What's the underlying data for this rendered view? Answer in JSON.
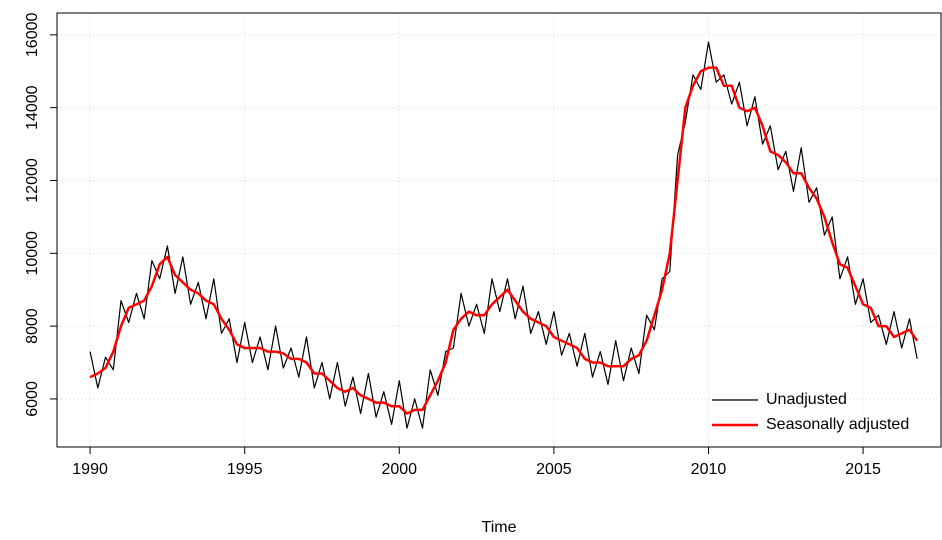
{
  "chart_data": {
    "type": "line",
    "xlabel": "Time",
    "xlim": [
      1988.93,
      2017.52
    ],
    "ylim": [
      4680,
      16600
    ],
    "xticks": [
      1990,
      1995,
      2000,
      2005,
      2010,
      2015
    ],
    "yticks": [
      6000,
      8000,
      10000,
      12000,
      14000,
      16000
    ],
    "grid": true,
    "legend": "bottom-right",
    "x": [
      1990,
      1990.25,
      1990.5,
      1990.75,
      1991,
      1991.25,
      1991.5,
      1991.75,
      1992,
      1992.25,
      1992.5,
      1992.75,
      1993,
      1993.25,
      1993.5,
      1993.75,
      1994,
      1994.25,
      1994.5,
      1994.75,
      1995,
      1995.25,
      1995.5,
      1995.75,
      1996,
      1996.25,
      1996.5,
      1996.75,
      1997,
      1997.25,
      1997.5,
      1997.75,
      1998,
      1998.25,
      1998.5,
      1998.75,
      1999,
      1999.25,
      1999.5,
      1999.75,
      2000,
      2000.25,
      2000.5,
      2000.75,
      2001,
      2001.25,
      2001.5,
      2001.75,
      2002,
      2002.25,
      2002.5,
      2002.75,
      2003,
      2003.25,
      2003.5,
      2003.75,
      2004,
      2004.25,
      2004.5,
      2004.75,
      2005,
      2005.25,
      2005.5,
      2005.75,
      2006,
      2006.25,
      2006.5,
      2006.75,
      2007,
      2007.25,
      2007.5,
      2007.75,
      2008,
      2008.25,
      2008.5,
      2008.75,
      2009,
      2009.25,
      2009.5,
      2009.75,
      2010,
      2010.25,
      2010.5,
      2010.75,
      2011,
      2011.25,
      2011.5,
      2011.75,
      2012,
      2012.25,
      2012.5,
      2012.75,
      2013,
      2013.25,
      2013.5,
      2013.75,
      2014,
      2014.25,
      2014.5,
      2014.75,
      2015,
      2015.25,
      2015.5,
      2015.75,
      2016,
      2016.25,
      2016.5,
      2016.75
    ],
    "series": [
      {
        "name": "Unadjusted",
        "color": "#000000",
        "width": 1.2,
        "values": [
          7300,
          6300,
          7150,
          6800,
          8700,
          8100,
          8900,
          8200,
          9800,
          9300,
          10200,
          8900,
          9900,
          8600,
          9200,
          8200,
          9300,
          7800,
          8200,
          7000,
          8100,
          7000,
          7700,
          6800,
          8000,
          6850,
          7400,
          6600,
          7700,
          6300,
          7000,
          6000,
          7000,
          5800,
          6600,
          5600,
          6700,
          5500,
          6200,
          5300,
          6500,
          5200,
          6000,
          5200,
          6800,
          6100,
          7300,
          7400,
          8900,
          8000,
          8600,
          7800,
          9300,
          8400,
          9300,
          8200,
          9100,
          7800,
          8400,
          7500,
          8400,
          7200,
          7800,
          6900,
          7800,
          6600,
          7300,
          6400,
          7600,
          6500,
          7400,
          6700,
          8300,
          7900,
          9300,
          9500,
          12700,
          13600,
          14900,
          14500,
          15800,
          14700,
          14900,
          14100,
          14700,
          13500,
          14300,
          13000,
          13500,
          12300,
          12800,
          11700,
          12900,
          11400,
          11800,
          10500,
          11000,
          9300,
          9900,
          8600,
          9300,
          8100,
          8300,
          7500,
          8400,
          7400,
          8200,
          7100
        ]
      },
      {
        "name": "Seasonally adjusted",
        "color": "#ff0000",
        "width": 2.5,
        "values": [
          6600,
          6700,
          6850,
          7300,
          8000,
          8500,
          8600,
          8700,
          9100,
          9700,
          9900,
          9400,
          9200,
          9000,
          8900,
          8700,
          8600,
          8200,
          7900,
          7500,
          7400,
          7400,
          7400,
          7300,
          7300,
          7250,
          7100,
          7100,
          7000,
          6700,
          6700,
          6500,
          6300,
          6200,
          6300,
          6100,
          6000,
          5900,
          5900,
          5800,
          5800,
          5600,
          5700,
          5700,
          6100,
          6500,
          7000,
          7900,
          8200,
          8400,
          8300,
          8300,
          8600,
          8800,
          9000,
          8700,
          8400,
          8200,
          8100,
          8000,
          7700,
          7600,
          7500,
          7400,
          7100,
          7000,
          7000,
          6900,
          6900,
          6900,
          7100,
          7200,
          7600,
          8300,
          9000,
          10000,
          12000,
          14000,
          14600,
          15000,
          15100,
          15100,
          14600,
          14600,
          14000,
          13900,
          14000,
          13500,
          12800,
          12700,
          12500,
          12200,
          12200,
          11800,
          11500,
          11000,
          10300,
          9700,
          9600,
          9100,
          8600,
          8500,
          8000,
          8000,
          7700,
          7800,
          7900,
          7600
        ]
      }
    ]
  }
}
